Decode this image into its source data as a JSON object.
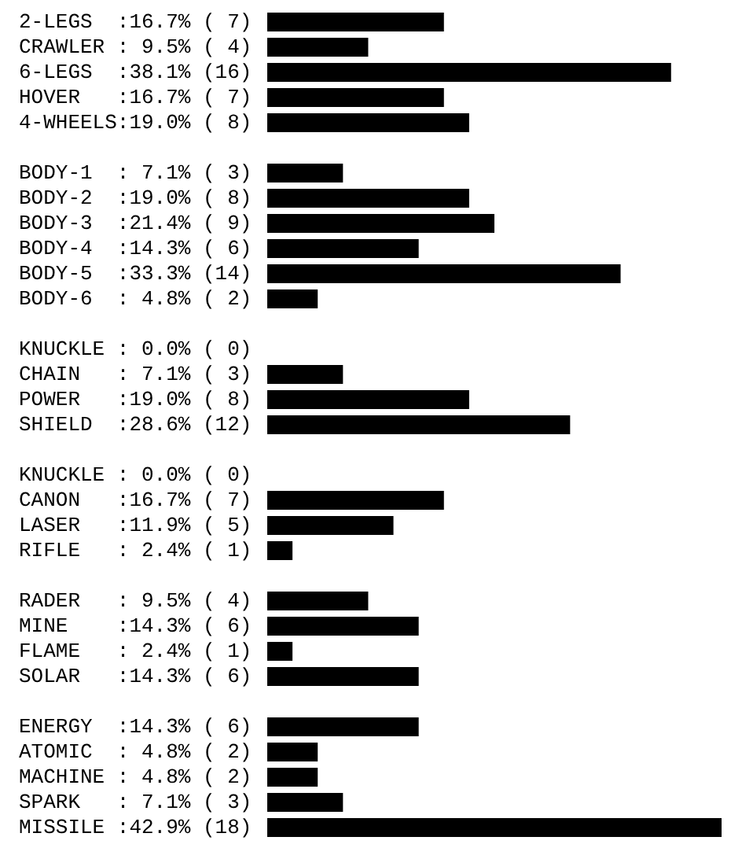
{
  "chart_data": [
    {
      "type": "bar",
      "orientation": "horizontal",
      "color": "#000000",
      "categories": [
        "2-LEGS",
        "CRAWLER",
        "6-LEGS",
        "HOVER",
        "4-WHEELS"
      ],
      "values": [
        7,
        4,
        16,
        7,
        8
      ],
      "value_labels": [
        ":16.7% ( 7)",
        ": 9.5% ( 4)",
        ":38.1% (16)",
        ":16.7% ( 7)",
        ":19.0% ( 8)"
      ]
    },
    {
      "type": "bar",
      "orientation": "horizontal",
      "color": "#000000",
      "categories": [
        "BODY-1",
        "BODY-2",
        "BODY-3",
        "BODY-4",
        "BODY-5",
        "BODY-6"
      ],
      "values": [
        3,
        8,
        9,
        6,
        14,
        2
      ],
      "value_labels": [
        ": 7.1% ( 3)",
        ":19.0% ( 8)",
        ":21.4% ( 9)",
        ":14.3% ( 6)",
        ":33.3% (14)",
        ": 4.8% ( 2)"
      ]
    },
    {
      "type": "bar",
      "orientation": "horizontal",
      "color": "#000000",
      "categories": [
        "KNUCKLE",
        "CHAIN",
        "POWER",
        "SHIELD"
      ],
      "values": [
        0,
        3,
        8,
        12
      ],
      "value_labels": [
        ": 0.0% ( 0)",
        ": 7.1% ( 3)",
        ":19.0% ( 8)",
        ":28.6% (12)"
      ]
    },
    {
      "type": "bar",
      "orientation": "horizontal",
      "color": "#000000",
      "categories": [
        "KNUCKLE",
        "CANON",
        "LASER",
        "RIFLE"
      ],
      "values": [
        0,
        7,
        5,
        1
      ],
      "value_labels": [
        ": 0.0% ( 0)",
        ":16.7% ( 7)",
        ":11.9% ( 5)",
        ": 2.4% ( 1)"
      ]
    },
    {
      "type": "bar",
      "orientation": "horizontal",
      "color": "#000000",
      "categories": [
        "RADER",
        "MINE",
        "FLAME",
        "SOLAR"
      ],
      "values": [
        4,
        6,
        1,
        6
      ],
      "value_labels": [
        ": 9.5% ( 4)",
        ":14.3% ( 6)",
        ": 2.4% ( 1)",
        ":14.3% ( 6)"
      ]
    },
    {
      "type": "bar",
      "orientation": "horizontal",
      "color": "#000000",
      "categories": [
        "ENERGY",
        "ATOMIC",
        "MACHINE",
        "SPARK",
        "MISSILE"
      ],
      "values": [
        6,
        2,
        2,
        3,
        18
      ],
      "value_labels": [
        ":14.3% ( 6)",
        ": 4.8% ( 2)",
        ": 4.8% ( 2)",
        ": 7.1% ( 3)",
        ":42.9% (18)"
      ]
    }
  ]
}
